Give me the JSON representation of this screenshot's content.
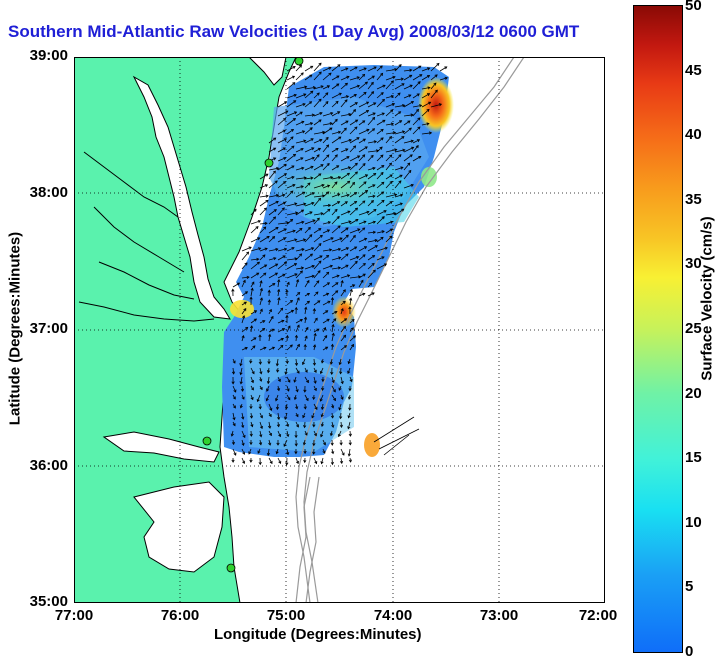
{
  "title": "Southern Mid-Atlantic Raw Velocities (1 Day Avg) 2008/03/12 0600 GMT",
  "axes": {
    "xlabel": "Longitude (Degrees:Minutes)",
    "ylabel": "Latitude (Degrees:Minutes)",
    "x_ticks": [
      "77:00",
      "76:00",
      "75:00",
      "74:00",
      "73:00",
      "72:00"
    ],
    "y_ticks": [
      "39:00",
      "38:00",
      "37:00",
      "36:00",
      "35:00"
    ]
  },
  "colorbar": {
    "label": "Surface Velocity (cm/s)",
    "ticks": [
      "50",
      "45",
      "40",
      "35",
      "30",
      "25",
      "20",
      "15",
      "10",
      "5",
      "0"
    ],
    "range": [
      0,
      50
    ]
  },
  "colors": {
    "land": "#5af2ad",
    "ocean": "#ffffff",
    "coastline": "#000000",
    "bathymetry": "#9a9a9a",
    "title": "#1f1fd6",
    "station": "#2fd12f"
  }
}
